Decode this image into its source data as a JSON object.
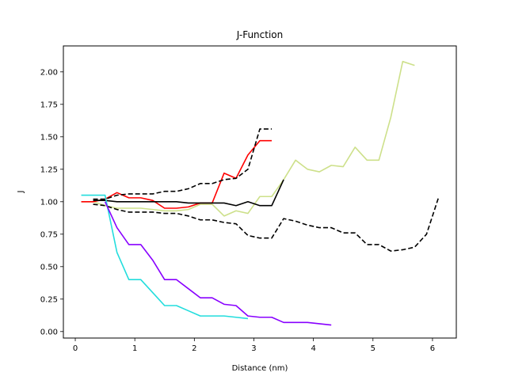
{
  "chart_data": {
    "type": "line",
    "title": "J-Function",
    "xlabel": "Distance (nm)",
    "ylabel": "J",
    "xlim": [
      -0.2,
      6.4
    ],
    "ylim": [
      -0.05,
      2.2
    ],
    "xticks": [
      0,
      1,
      2,
      3,
      4,
      5,
      6
    ],
    "xtick_labels": [
      "0",
      "1",
      "2",
      "3",
      "4",
      "5",
      "6"
    ],
    "yticks": [
      0.0,
      0.25,
      0.5,
      0.75,
      1.0,
      1.25,
      1.5,
      1.75,
      2.0
    ],
    "ytick_labels": [
      "0.00",
      "0.25",
      "0.50",
      "0.75",
      "1.00",
      "1.25",
      "1.50",
      "1.75",
      "2.00"
    ],
    "grid": false,
    "series": [
      {
        "color": "#9acd32",
        "alt_color": "#cde08a",
        "dash": false,
        "x": [
          0.1,
          0.3,
          0.5,
          0.7,
          0.9,
          1.1,
          1.3,
          1.5,
          1.7,
          1.9,
          2.1,
          2.3,
          2.5,
          2.7,
          2.9,
          3.1,
          3.3,
          3.5,
          3.7,
          3.9,
          4.1,
          4.3,
          4.5,
          4.7,
          4.9,
          5.1,
          5.3,
          5.5,
          5.7
        ],
        "y": [
          1.0,
          1.0,
          0.97,
          0.95,
          0.95,
          0.95,
          0.94,
          0.93,
          0.93,
          0.94,
          0.98,
          0.98,
          0.89,
          0.93,
          0.91,
          1.04,
          1.04,
          1.17,
          1.32,
          1.25,
          1.23,
          1.28,
          1.27,
          1.42,
          1.32,
          1.32,
          1.65,
          2.08,
          2.05
        ]
      },
      {
        "color": "#ff0000",
        "dash": false,
        "x": [
          0.1,
          0.3,
          0.5,
          0.7,
          0.9,
          1.1,
          1.3,
          1.5,
          1.7,
          1.9,
          2.1,
          2.3,
          2.5,
          2.7,
          2.9,
          3.1,
          3.3
        ],
        "y": [
          1.0,
          1.0,
          1.02,
          1.07,
          1.03,
          1.03,
          1.01,
          0.95,
          0.95,
          0.96,
          0.99,
          0.99,
          1.22,
          1.18,
          1.36,
          1.47,
          1.47
        ]
      },
      {
        "color": "#000000",
        "dash": false,
        "x": [
          0.3,
          0.5,
          0.7,
          0.9,
          1.1,
          1.3,
          1.5,
          1.7,
          1.9,
          2.1,
          2.3,
          2.5,
          2.7,
          2.9,
          3.1,
          3.3,
          3.5
        ],
        "y": [
          1.01,
          1.01,
          1.0,
          1.0,
          1.0,
          1.0,
          1.0,
          1.0,
          0.99,
          0.99,
          0.99,
          0.99,
          0.97,
          1.0,
          0.97,
          0.97,
          1.17
        ]
      },
      {
        "color": "#000000",
        "dash": true,
        "x": [
          0.3,
          0.5,
          0.7,
          0.9,
          1.1,
          1.3,
          1.5,
          1.7,
          1.9,
          2.1,
          2.3,
          2.5,
          2.7,
          2.9,
          3.1,
          3.3
        ],
        "y": [
          1.02,
          1.02,
          1.05,
          1.06,
          1.06,
          1.06,
          1.08,
          1.08,
          1.1,
          1.14,
          1.14,
          1.17,
          1.18,
          1.25,
          1.56,
          1.56
        ]
      },
      {
        "color": "#000000",
        "dash": true,
        "x": [
          0.3,
          0.5,
          0.7,
          0.9,
          1.1,
          1.3,
          1.5,
          1.7,
          1.9,
          2.1,
          2.3,
          2.5,
          2.7,
          2.9,
          3.1,
          3.3,
          3.5,
          3.7,
          3.9,
          4.1,
          4.3,
          4.5,
          4.7,
          4.9,
          5.1,
          5.3,
          5.5,
          5.7,
          5.9,
          6.1
        ],
        "y": [
          0.98,
          0.97,
          0.94,
          0.92,
          0.92,
          0.92,
          0.91,
          0.91,
          0.89,
          0.86,
          0.86,
          0.84,
          0.83,
          0.74,
          0.72,
          0.72,
          0.87,
          0.85,
          0.82,
          0.8,
          0.8,
          0.76,
          0.76,
          0.67,
          0.67,
          0.62,
          0.63,
          0.65,
          0.75,
          1.03
        ]
      },
      {
        "color": "#22dddd",
        "dash": false,
        "x": [
          0.1,
          0.3,
          0.5,
          0.7,
          0.9,
          1.1,
          1.3,
          1.5,
          1.7,
          1.9,
          2.1,
          2.3,
          2.5,
          2.7,
          2.9
        ],
        "y": [
          1.05,
          1.05,
          1.05,
          0.61,
          0.4,
          0.4,
          0.3,
          0.2,
          0.2,
          0.16,
          0.12,
          0.12,
          0.12,
          0.11,
          0.1
        ]
      },
      {
        "color": "#8800ff",
        "dash": false,
        "x": [
          0.5,
          0.7,
          0.9,
          1.1,
          1.3,
          1.5,
          1.7,
          1.9,
          2.1,
          2.3,
          2.5,
          2.7,
          2.9,
          3.1,
          3.3,
          3.5,
          3.7,
          3.9,
          4.1,
          4.3
        ],
        "y": [
          1.0,
          0.8,
          0.67,
          0.67,
          0.55,
          0.4,
          0.4,
          0.33,
          0.26,
          0.26,
          0.21,
          0.2,
          0.12,
          0.11,
          0.11,
          0.07,
          0.07,
          0.07,
          0.06,
          0.05
        ]
      }
    ]
  }
}
